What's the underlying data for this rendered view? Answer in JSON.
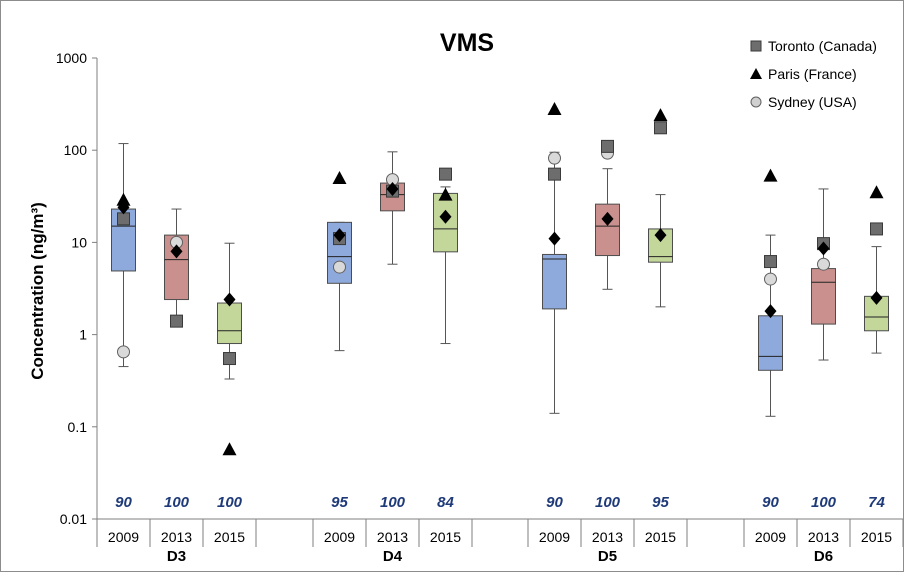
{
  "chart_data": {
    "type": "box",
    "title": "VMS",
    "ylabel": "Concentration (ng/m³)",
    "yscale": "log",
    "ylim": [
      0.01,
      1000
    ],
    "y_ticks": [
      "0.01",
      "0.1",
      "1",
      "10",
      "100",
      "1000"
    ],
    "grid": false,
    "legend_position": "top-right",
    "groups": [
      "D3",
      "D4",
      "D5",
      "D6"
    ],
    "years": [
      "2009",
      "2013",
      "2015"
    ],
    "year_colors": {
      "2009": "#8ea9db",
      "2013": "#c9908d",
      "2015": "#c4d79b"
    },
    "legend": [
      {
        "label": "Toronto (Canada)",
        "marker": "square",
        "color": "#6d6d6d"
      },
      {
        "label": "Paris (France)",
        "marker": "triangle",
        "color": "#000000"
      },
      {
        "label": "Sydney (USA)",
        "marker": "circle",
        "color": "#d0d0d0"
      }
    ],
    "boxes": [
      {
        "group": "D3",
        "year": "2009",
        "min": 0.45,
        "q1": 4.9,
        "median": 15,
        "q3": 23,
        "max": 118,
        "n": "90",
        "toronto": 18,
        "paris": 29,
        "sydney": 0.65,
        "diamond": 24
      },
      {
        "group": "D3",
        "year": "2013",
        "min": 1.25,
        "q1": 2.4,
        "median": 6.5,
        "q3": 12,
        "max": 23,
        "n": "100",
        "toronto": 1.4,
        "paris": null,
        "sydney": 10,
        "diamond": 8
      },
      {
        "group": "D3",
        "year": "2015",
        "min": 0.33,
        "q1": 0.8,
        "median": 1.1,
        "q3": 2.2,
        "max": 9.8,
        "n": "100",
        "toronto": 0.55,
        "paris": 0.057,
        "sydney": null,
        "diamond": 2.4
      },
      {
        "group": "D4",
        "year": "2009",
        "min": 0.67,
        "q1": 3.6,
        "median": 7,
        "q3": 16.5,
        "max": 16.5,
        "n": "95",
        "toronto": 11,
        "paris": 50,
        "sydney": 5.4,
        "diamond": 12
      },
      {
        "group": "D4",
        "year": "2013",
        "min": 5.8,
        "q1": 22,
        "median": 33,
        "q3": 44,
        "max": 96,
        "n": "100",
        "toronto": 36,
        "paris": null,
        "sydney": 48,
        "diamond": 38
      },
      {
        "group": "D4",
        "year": "2015",
        "min": 0.8,
        "q1": 7.9,
        "median": 14,
        "q3": 34,
        "max": 40,
        "n": "84",
        "toronto": 55,
        "paris": 33,
        "sydney": null,
        "diamond": 19
      },
      {
        "group": "D5",
        "year": "2009",
        "min": 0.14,
        "q1": 1.9,
        "median": 6.6,
        "q3": 7.4,
        "max": 95,
        "n": "90",
        "toronto": 55,
        "paris": 280,
        "sydney": 82,
        "diamond": 11
      },
      {
        "group": "D5",
        "year": "2013",
        "min": 3.1,
        "q1": 7.2,
        "median": 15,
        "q3": 26,
        "max": 63,
        "n": "100",
        "toronto": 110,
        "paris": null,
        "sydney": 93,
        "diamond": 18
      },
      {
        "group": "D5",
        "year": "2015",
        "min": 2,
        "q1": 6.1,
        "median": 7,
        "q3": 14,
        "max": 33,
        "n": "95",
        "toronto": 175,
        "paris": 240,
        "sydney": null,
        "diamond": 12
      },
      {
        "group": "D6",
        "year": "2009",
        "min": 0.13,
        "q1": 0.41,
        "median": 0.58,
        "q3": 1.6,
        "max": 12,
        "n": "90",
        "toronto": 6.2,
        "paris": 53,
        "sydney": 4,
        "diamond": 1.8
      },
      {
        "group": "D6",
        "year": "2013",
        "min": 0.53,
        "q1": 1.3,
        "median": 3.7,
        "q3": 5.2,
        "max": 38,
        "n": "100",
        "toronto": 9.7,
        "paris": null,
        "sydney": 5.8,
        "diamond": 8.6
      },
      {
        "group": "D6",
        "year": "2015",
        "min": 0.63,
        "q1": 1.1,
        "median": 1.55,
        "q3": 2.6,
        "max": 9,
        "n": "74",
        "toronto": 14,
        "paris": 35,
        "sydney": null,
        "diamond": 2.5
      }
    ]
  }
}
